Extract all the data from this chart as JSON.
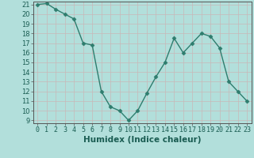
{
  "x": [
    0,
    1,
    2,
    3,
    4,
    5,
    6,
    7,
    8,
    9,
    10,
    11,
    12,
    13,
    14,
    15,
    16,
    17,
    18,
    19,
    20,
    21,
    22,
    23
  ],
  "y": [
    21.0,
    21.1,
    20.5,
    20.0,
    19.5,
    17.0,
    16.8,
    12.0,
    10.4,
    10.0,
    9.0,
    10.0,
    11.8,
    13.5,
    15.0,
    17.5,
    16.0,
    17.0,
    18.0,
    17.7,
    16.5,
    13.0,
    12.0,
    11.0
  ],
  "line_color": "#2e7d6e",
  "marker_color": "#2e7d6e",
  "bg_color": "#b2dfdb",
  "grid_color": "#c8b8b8",
  "xlabel": "Humidex (Indice chaleur)",
  "xlabel_fontsize": 7.5,
  "tick_fontsize": 6,
  "ylim": [
    9,
    21
  ],
  "xlim": [
    -0.5,
    23.5
  ],
  "yticks": [
    9,
    10,
    11,
    12,
    13,
    14,
    15,
    16,
    17,
    18,
    19,
    20,
    21
  ],
  "xticks": [
    0,
    1,
    2,
    3,
    4,
    5,
    6,
    7,
    8,
    9,
    10,
    11,
    12,
    13,
    14,
    15,
    16,
    17,
    18,
    19,
    20,
    21,
    22,
    23
  ],
  "label_color": "#1a5c52",
  "spine_color": "#555555"
}
